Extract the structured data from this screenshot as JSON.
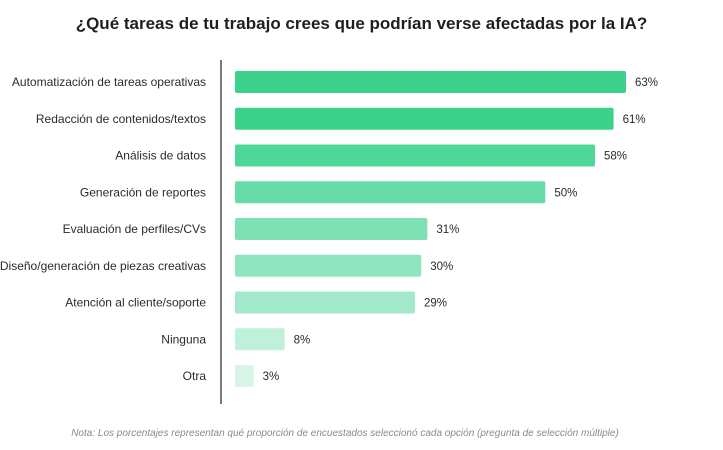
{
  "chart_data": {
    "type": "bar",
    "orientation": "horizontal",
    "title": "¿Qué tareas de tu trabajo crees que podrían verse afectadas por la IA?",
    "note": "Nota: Los porcentajes representan qué proporción de encuestados seleccionó cada opción (pregunta de selección múltiple)",
    "categories": [
      "Automatización de tareas operativas",
      "Redacción de contenidos/textos",
      "Análisis de datos",
      "Generación de reportes",
      "Evaluación de perfiles/CVs",
      "Diseño/generación de piezas creativas",
      "Atención al cliente/soporte",
      "Ninguna",
      "Otra"
    ],
    "values": [
      63,
      61,
      58,
      50,
      31,
      30,
      29,
      8,
      3
    ],
    "value_labels": [
      "63%",
      "61%",
      "58%",
      "50%",
      "31%",
      "30%",
      "29%",
      "8%",
      "3%"
    ],
    "colors": [
      "#3dd28b",
      "#3dd28b",
      "#4fd799",
      "#67dbaa",
      "#7ee1b6",
      "#8ee5bf",
      "#a2eacb",
      "#bff0d9",
      "#d6f5e6"
    ],
    "xlim": [
      0,
      63
    ],
    "grid": false,
    "legend": "none"
  }
}
